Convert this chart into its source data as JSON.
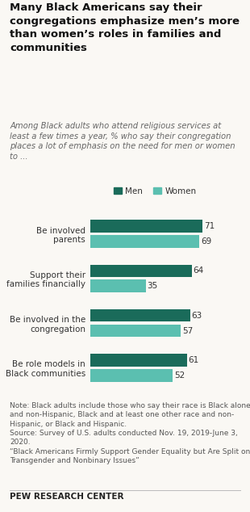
{
  "title": "Many Black Americans say their\ncongregations emphasize men’s more\nthan women’s roles in families and\ncommunities",
  "subtitle": "Among Black adults who attend religious services at\nleast a few times a year, % who say their congregation\nplaces a lot of emphasis on the need for men or women\nto ...",
  "categories": [
    "Be involved\nparents",
    "Support their\nfamilies financially",
    "Be involved in the\ncongregation",
    "Be role models in\nBlack communities"
  ],
  "men_values": [
    71,
    64,
    63,
    61
  ],
  "women_values": [
    69,
    35,
    57,
    52
  ],
  "men_color": "#1a6b5a",
  "women_color": "#5bbfb0",
  "bar_height": 0.28,
  "xlim": [
    0,
    85
  ],
  "legend_labels": [
    "Men",
    "Women"
  ],
  "note": "Note: Black adults include those who say their race is Black alone\nand non-Hispanic, Black and at least one other race and non-\nHispanic, or Black and Hispanic.\nSource: Survey of U.S. adults conducted Nov. 19, 2019-June 3,\n2020.\n“Black Americans Firmly Support Gender Equality but Are Split on\nTransgender and Nonbinary Issues”",
  "source_label": "PEW RESEARCH CENTER",
  "bg_color": "#faf8f4",
  "label_fontsize": 7.5,
  "title_fontsize": 9.5,
  "subtitle_fontsize": 7.2,
  "note_fontsize": 6.5
}
